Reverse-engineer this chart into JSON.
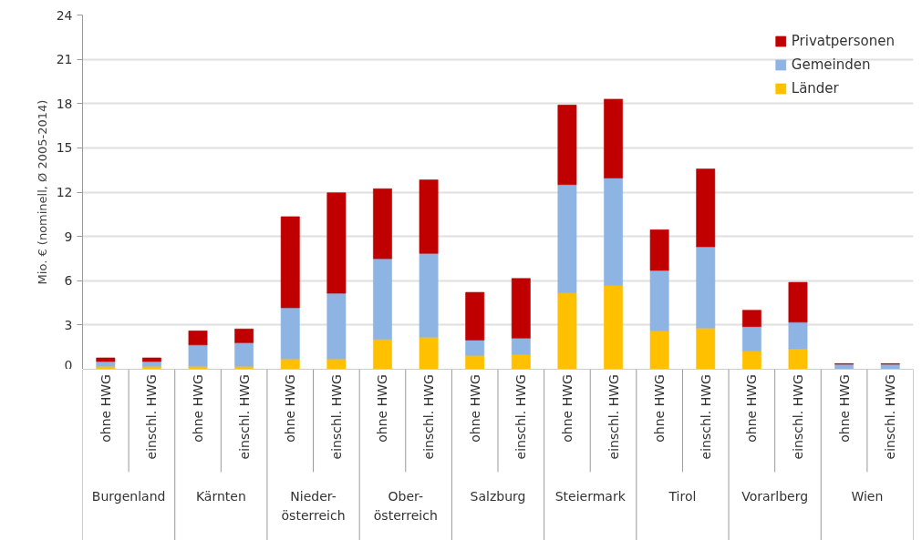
{
  "chart_data": {
    "type": "bar",
    "stacked": true,
    "ylabel": "Mio. € (nominell, Ø 2005-2014)",
    "categories": [
      "ohne HWG",
      "einschl. HWG",
      "ohne HWG",
      "einschl. HWG",
      "ohne HWG",
      "einschl. HWG",
      "ohne HWG",
      "einschl. HWG",
      "ohne HWG",
      "einschl. HWG",
      "ohne HWG",
      "einschl. HWG",
      "ohne HWG",
      "einschl. HWG",
      "ohne HWG",
      "einschl. HWG",
      "ohne HWG",
      "einschl. HWG"
    ],
    "series": [
      {
        "name": "Länder",
        "color": "#ffc000",
        "values": [
          0.2,
          0.2,
          0.2,
          0.2,
          0.7,
          0.7,
          2.04,
          2.17,
          0.94,
          1.0,
          5.17,
          5.68,
          2.6,
          2.79,
          1.23,
          1.38,
          0,
          0
        ]
      },
      {
        "name": "Gemeinden",
        "color": "#8eb4e3",
        "values": [
          0.33,
          0.33,
          1.45,
          1.6,
          3.47,
          4.45,
          5.45,
          5.68,
          1.04,
          1.11,
          7.34,
          7.28,
          4.1,
          5.51,
          1.66,
          1.81,
          0.34,
          0.34
        ]
      },
      {
        "name": "Privatpersonen",
        "color": "#c00000",
        "values": [
          0.24,
          0.24,
          0.95,
          0.93,
          6.17,
          6.81,
          4.74,
          4.98,
          3.23,
          4.04,
          5.39,
          5.34,
          2.75,
          5.27,
          1.11,
          2.7,
          0.04,
          0.04
        ]
      }
    ],
    "ylim": [
      0,
      24
    ],
    "yticks": [
      0,
      3,
      6,
      9,
      12,
      15,
      18,
      21,
      24
    ],
    "grid": "y",
    "legend": "top right",
    "annotations": [
      "Burgenland",
      "Kärnten",
      "Nieder-\nösterreich",
      "Ober-\nösterreich",
      "Salzburg",
      "Steiermark",
      "Tirol",
      "Vorarlberg",
      "Wien"
    ]
  }
}
